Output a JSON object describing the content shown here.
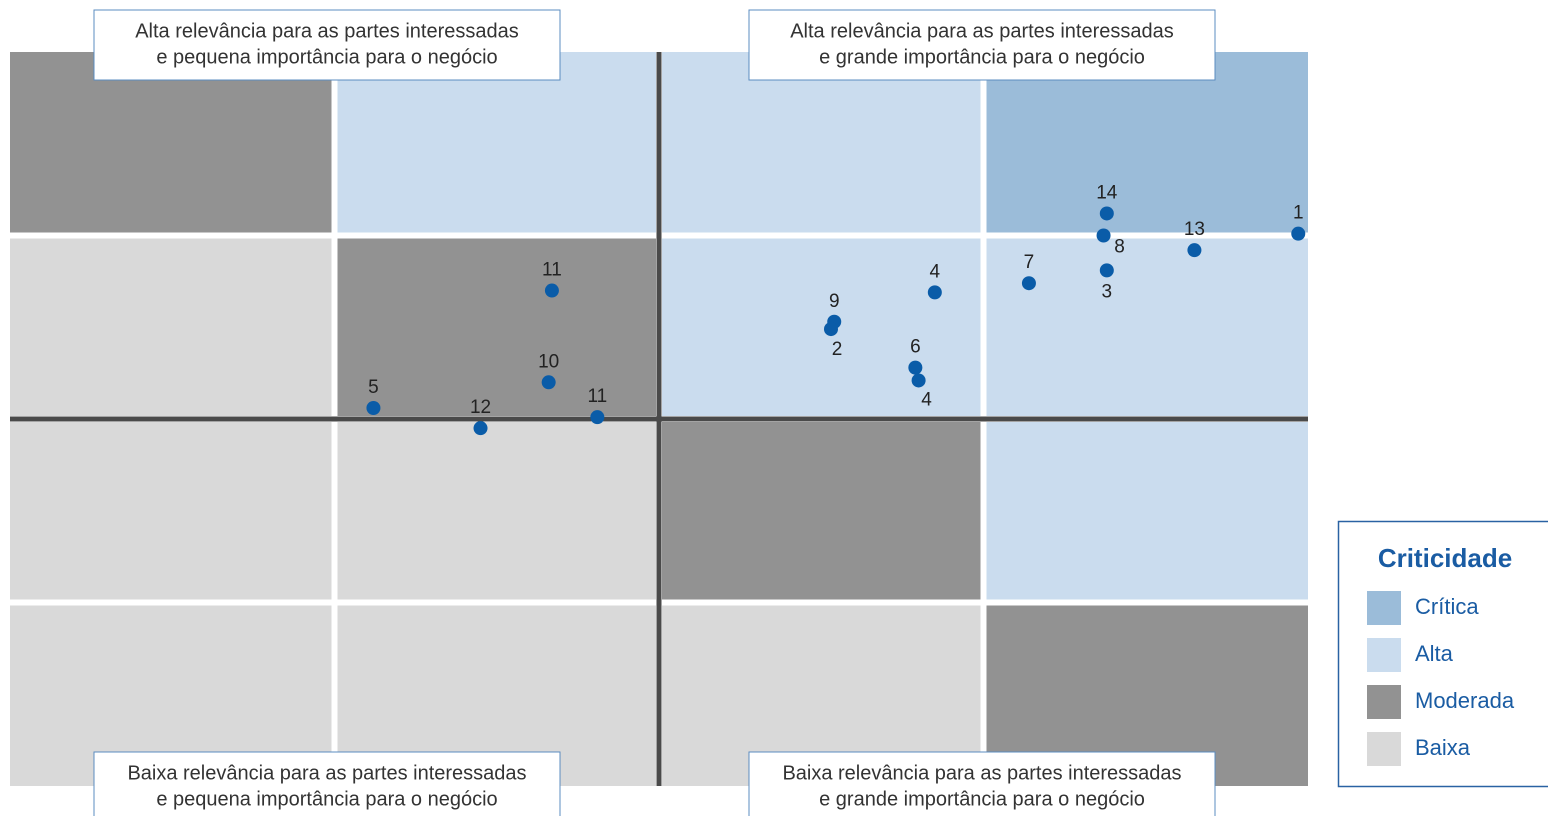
{
  "chart_data": {
    "type": "scatter",
    "xlim": [
      0,
      4
    ],
    "ylim": [
      0,
      4
    ],
    "quadrant_labels": [
      [
        "Alta relevância para as partes interessadas",
        "e pequena importância para o negócio"
      ],
      [
        "Alta relevância para as partes interessadas",
        "e grande importância para o negócio"
      ],
      [
        "Baixa relevância para as partes interessadas",
        "e pequena importância para o negócio"
      ],
      [
        "Baixa relevância para as partes interessadas",
        "e grande importância para o negócio"
      ]
    ],
    "legend_title": "Criticidade",
    "levels": [
      {
        "name": "Crítica",
        "color": "#9bbcd9"
      },
      {
        "name": "Alta",
        "color": "#cadcee"
      },
      {
        "name": "Moderada",
        "color": "#929292"
      },
      {
        "name": "Baixa",
        "color": "#d9d9d9"
      }
    ],
    "matrix": [
      [
        "Moderada",
        "Alta",
        "Alta",
        "Crítica"
      ],
      [
        "Baixa",
        "Moderada",
        "Alta",
        "Alta"
      ],
      [
        "Baixa",
        "Baixa",
        "Moderada",
        "Alta"
      ],
      [
        "Baixa",
        "Baixa",
        "Baixa",
        "Moderada"
      ]
    ],
    "point_color": "#0a5ca8",
    "labels": [
      "14",
      "8",
      "3",
      "13",
      "1",
      "7",
      "4",
      "9",
      "2",
      "6",
      "4",
      "11",
      "10",
      "5",
      "12",
      "11"
    ],
    "x": [
      3.38,
      3.37,
      3.38,
      3.65,
      3.97,
      3.14,
      2.85,
      2.54,
      2.53,
      2.79,
      2.8,
      1.67,
      1.66,
      1.12,
      1.45,
      1.81
    ],
    "y": [
      3.12,
      3.0,
      2.81,
      2.92,
      3.01,
      2.74,
      2.69,
      2.53,
      2.49,
      2.28,
      2.21,
      2.7,
      2.2,
      2.06,
      1.95,
      2.01
    ]
  }
}
